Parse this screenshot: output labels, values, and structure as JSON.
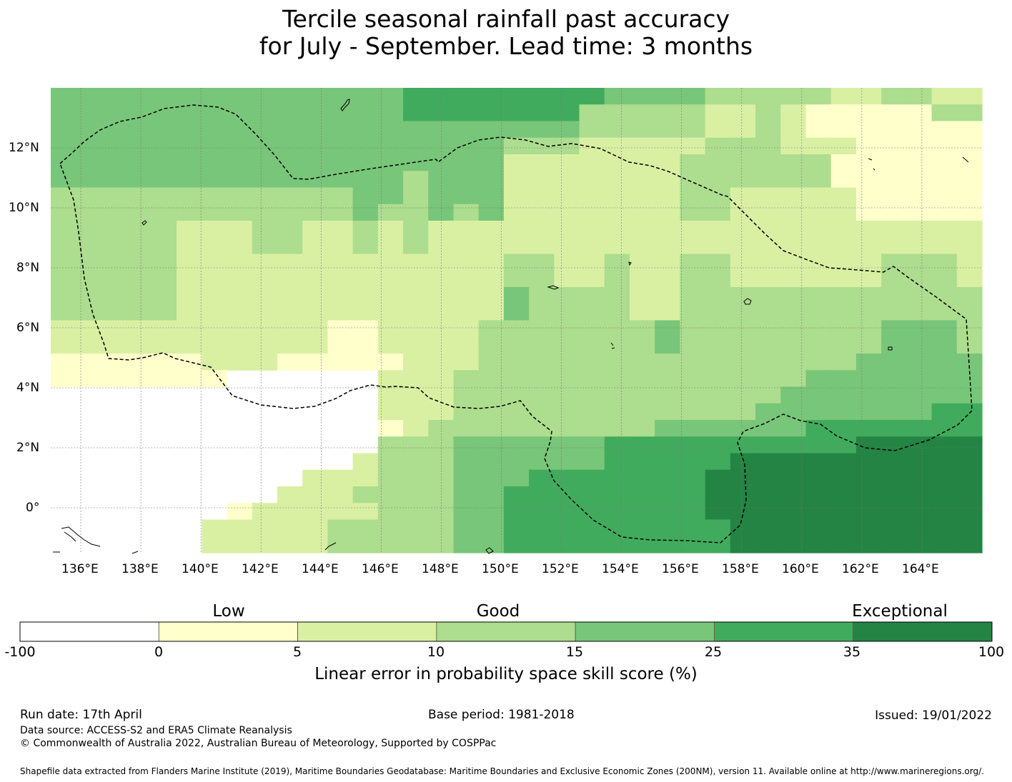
{
  "title": {
    "line1": "Tercile seasonal rainfall past accuracy",
    "line2": "for July - September. Lead time: 3 months"
  },
  "map": {
    "lon_range": [
      135,
      166
    ],
    "lat_range": [
      -1.5,
      14
    ],
    "lon_ticks": [
      "136°E",
      "138°E",
      "140°E",
      "142°E",
      "144°E",
      "146°E",
      "148°E",
      "150°E",
      "152°E",
      "154°E",
      "156°E",
      "158°E",
      "160°E",
      "162°E",
      "164°E"
    ],
    "lat_ticks": [
      "12°N",
      "10°N",
      "8°N",
      "6°N",
      "4°N",
      "2°N",
      "0°"
    ],
    "grid_cols": 37,
    "grid_rows": 28,
    "skill_grid": [
      "4444444444444455555555444433333223322",
      "4444444444444455555553333322321111133",
      "4444444444444444444443333322321111111",
      "4444444444444444443332222233322211111",
      "4444444444444444442222222333333111111",
      "4444444444444434442222222333333111111",
      "3333333333334434442222222332222211111",
      "3333333333334334342222222332222211111",
      "3333322233223232222222222222222222222",
      "3333322233223232222222222222222222222",
      "3333322222222222223322322332222223332",
      "3333322222222222223322322332222223332",
      "3333322222222222224333322333333333333",
      "3333322222222222224333322333333333333",
      "2222222222211222233333334333333334443",
      "2222222222211222233333334333333334443",
      "1111112221111122233333333333333344444",
      "1111111000000222333333333333334444444",
      "0000000000000222333333333333344444444",
      "0000000000000222333333333333444444455",
      "0000000000000123333333334444445555555",
      "0000000000000333444444555555555566666",
      "0000000000002333444444555556666666666",
      "0000000000222333444555555566666666666",
      "0000000002223333445555555566666666666",
      "0000000122222333445555555566666666666",
      "0000002222233333445555555556666666666",
      "0000002222233333445555555556666666666"
    ],
    "colors": [
      "#ffffff",
      "#ffffcc",
      "#d9f0a3",
      "#addd8e",
      "#78c679",
      "#41ab5d",
      "#238443"
    ]
  },
  "colorbar": {
    "categories": [
      "Low",
      "Good",
      "Exceptional"
    ],
    "ticks": [
      "-100",
      "0",
      "5",
      "10",
      "15",
      "25",
      "35",
      "100"
    ],
    "label": "Linear error in probability space skill score (%)"
  },
  "footer": {
    "run_date": "Run date: 17th April",
    "base_period": "Base period: 1981-2018",
    "issued": "Issued: 19/01/2022",
    "data_source": "Data source: ACCESS-S2 and ERA5 Climate Reanalysis",
    "copyright": "© Commonwealth of Australia 2022, Australian Bureau of Meteorology, Supported by COSPPac",
    "shapefile": "Shapefile data extracted from Flanders Marine Institute (2019), Maritime Boundaries Geodatabase: Maritime Boundaries and Exclusive Economic Zones (200NM), version 11. Available online at http://www.marineregions.org/."
  }
}
